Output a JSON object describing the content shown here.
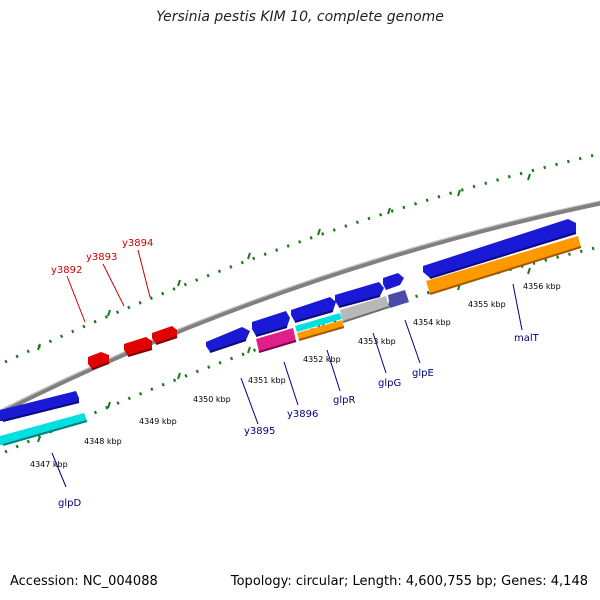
{
  "title": "Yersinia pestis KIM 10, complete genome",
  "accession_label": "Accession: NC_004088",
  "topology": "circular",
  "length": "4,600,755 bp",
  "genes": "4,148",
  "footer_topology_prefix": "Topology: ",
  "footer_length_prefix": "; Length: ",
  "footer_genes_prefix": "; Genes: ",
  "colors": {
    "backbone": "#808080",
    "tick": "#1a7a1a",
    "reverse_gene_label": "#cc0000",
    "forward_gene_label": "#000080",
    "blue_feature": "#1a1ad6",
    "red_feature": "#e00000",
    "cyan_feature": "#00e0e0",
    "orange_feature": "#ff9900",
    "magenta_feature": "#e0208a",
    "gray_feature": "#b8b8b8",
    "navy_feature": "#4a4aa8"
  },
  "scale_labels": [
    "4347 kbp",
    "4348 kbp",
    "4349 kbp",
    "4350 kbp",
    "4351 kbp",
    "4352 kbp",
    "4353 kbp",
    "4354 kbp",
    "4355 kbp",
    "4356 kbp"
  ],
  "forward_gene_labels": [
    "glpD",
    "y3895",
    "y3896",
    "glpR",
    "glpG",
    "glpE",
    "malT"
  ],
  "reverse_gene_labels": [
    "y3892",
    "y3893",
    "y3894"
  ]
}
